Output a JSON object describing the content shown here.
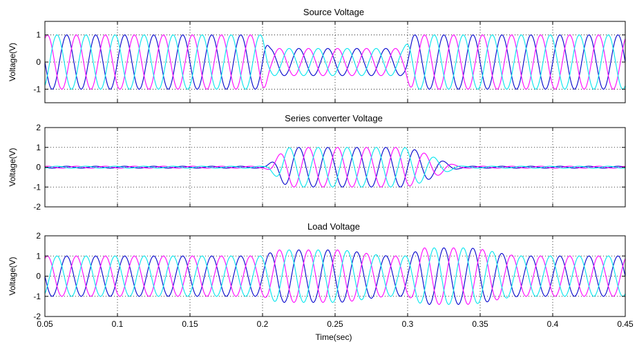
{
  "chart_data": [
    {
      "type": "line",
      "title": "Source Voltage",
      "xlabel": "",
      "ylabel": "Voltage(V)",
      "xlim": [
        0.05,
        0.45
      ],
      "ylim": [
        -1.5,
        1.5
      ],
      "yticks": [
        "1",
        "0",
        "-1"
      ],
      "ytick_values": [
        1,
        0,
        -1
      ],
      "xticks": [],
      "grid": true,
      "signal": {
        "frequency_hz": 50,
        "phase_shifts_deg": [
          0,
          -120,
          120
        ],
        "nominal_amplitude": 1.0,
        "sag": {
          "start": 0.2,
          "end": 0.3,
          "amplitude": 0.5
        }
      },
      "series": [
        {
          "color": "#0000cc",
          "phase_deg": 0
        },
        {
          "color": "#ff00ff",
          "phase_deg": -120
        },
        {
          "color": "#00e5ee",
          "phase_deg": 120
        }
      ]
    },
    {
      "type": "line",
      "title": "Series converter Voltage",
      "xlabel": "",
      "ylabel": "Voltage(V)",
      "xlim": [
        0.05,
        0.45
      ],
      "ylim": [
        -2,
        2
      ],
      "yticks": [
        "2",
        "1",
        "0",
        "-1",
        "-2"
      ],
      "ytick_values": [
        2,
        1,
        0,
        -1,
        -2
      ],
      "xticks": [],
      "grid": true,
      "signal": {
        "frequency_hz": 50,
        "phase_shifts_deg": [
          0,
          -120,
          120
        ],
        "baseline_amplitude": 0.05,
        "compensation": {
          "start": 0.2,
          "end": 0.3,
          "amplitude": 1.0
        }
      },
      "series": [
        {
          "color": "#0000cc",
          "phase_deg": 0
        },
        {
          "color": "#ff00ff",
          "phase_deg": -120
        },
        {
          "color": "#00e5ee",
          "phase_deg": 120
        }
      ]
    },
    {
      "type": "line",
      "title": "Load Voltage",
      "xlabel": "Time(sec)",
      "ylabel": "Voltage(V)",
      "xlim": [
        0.05,
        0.45
      ],
      "ylim": [
        -2,
        2
      ],
      "yticks": [
        "2",
        "1",
        "0",
        "-1",
        "-2"
      ],
      "ytick_values": [
        2,
        1,
        0,
        -1,
        -2
      ],
      "xticks": [
        "0.05",
        "0.1",
        "0.15",
        "0.2",
        "0.25",
        "0.3",
        "0.35",
        "0.4",
        "0.45"
      ],
      "xtick_values": [
        0.05,
        0.1,
        0.15,
        0.2,
        0.25,
        0.3,
        0.35,
        0.4,
        0.45
      ],
      "grid": true,
      "signal": {
        "frequency_hz": 50,
        "phase_shifts_deg": [
          0,
          -120,
          120
        ],
        "nominal_amplitude": 1.0,
        "transients": [
          {
            "start": 0.2,
            "end": 0.26,
            "peak_amplitude": 1.3
          },
          {
            "start": 0.3,
            "end": 0.35,
            "peak_amplitude": 1.4
          }
        ]
      },
      "series": [
        {
          "color": "#0000cc",
          "phase_deg": 0
        },
        {
          "color": "#ff00ff",
          "phase_deg": -120
        },
        {
          "color": "#00e5ee",
          "phase_deg": 120
        }
      ]
    }
  ]
}
